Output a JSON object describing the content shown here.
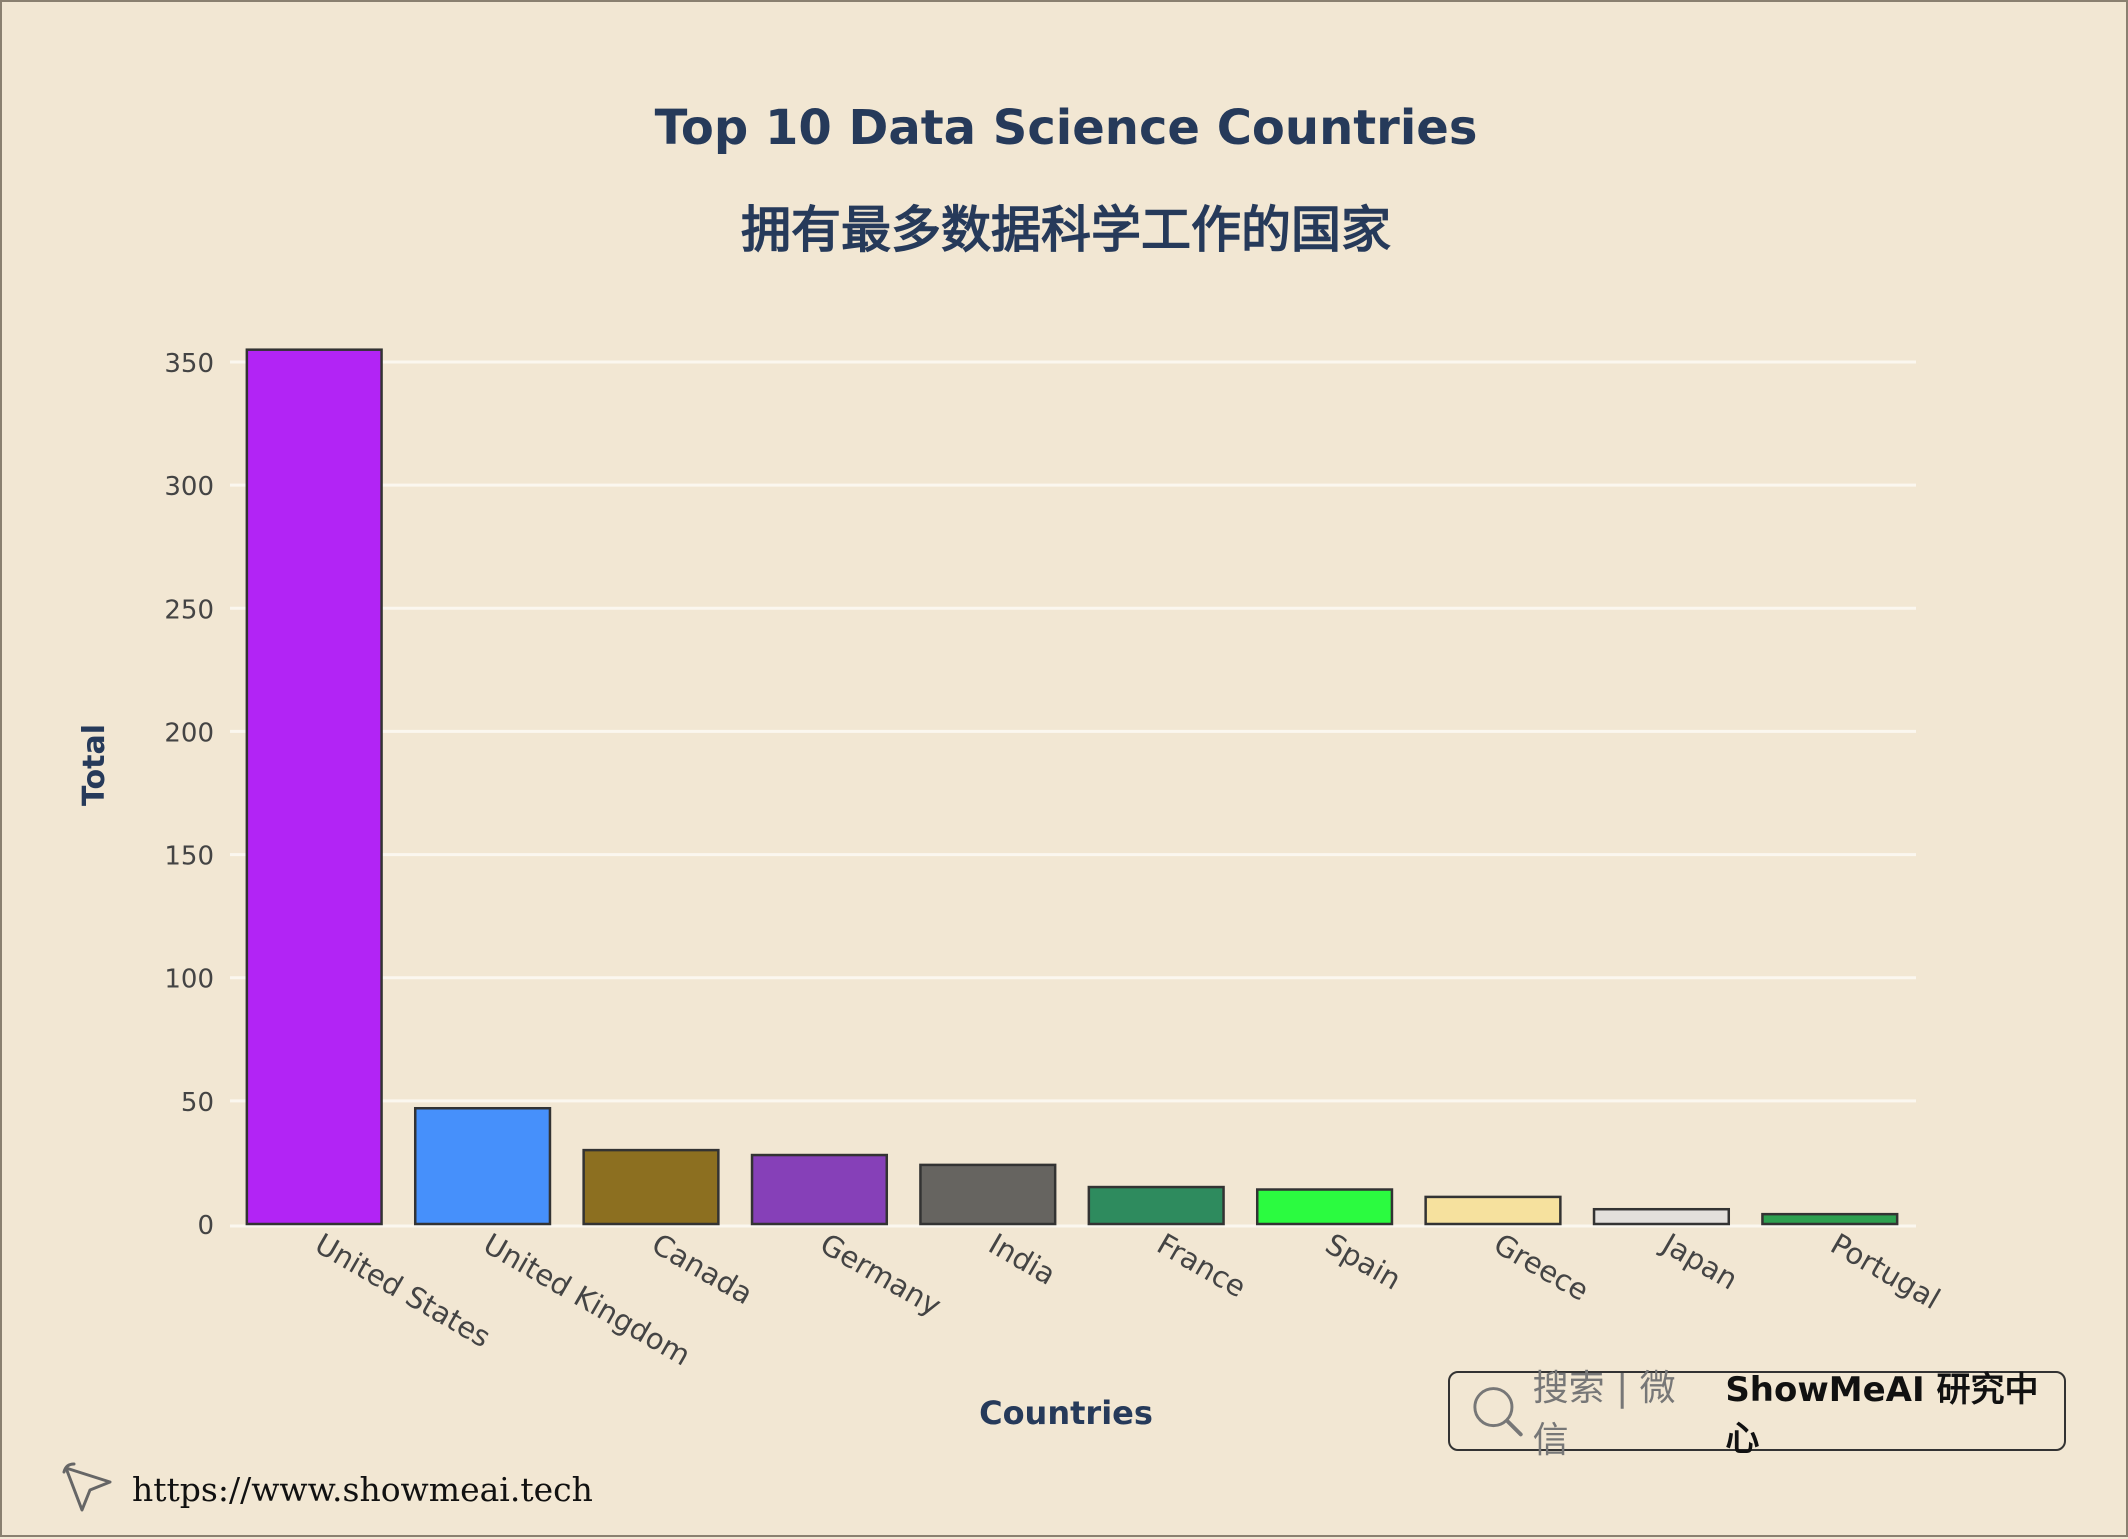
{
  "chart_data": {
    "type": "bar",
    "title": "Top 10 Data Science Countries",
    "subtitle": "拥有最多数据科学工作的国家",
    "xlabel": "Countries",
    "ylabel": "Total",
    "categories": [
      "United States",
      "United Kingdom",
      "Canada",
      "Germany",
      "India",
      "France",
      "Spain",
      "Greece",
      "Japan",
      "Portugal"
    ],
    "values": [
      355,
      47,
      30,
      28,
      24,
      15,
      14,
      11,
      6,
      4
    ],
    "colors": [
      "#b224f5",
      "#4690fb",
      "#8c6f20",
      "#8640b8",
      "#666460",
      "#2e8b5e",
      "#2bfb40",
      "#f6e19e",
      "#e3e0dc",
      "#2ea050"
    ],
    "ylim": [
      0,
      360
    ],
    "yticks": [
      0,
      50,
      100,
      150,
      200,
      250,
      300,
      350
    ],
    "grid": true,
    "legend": "none"
  },
  "watermark": {
    "icon": "search-icon",
    "prefix": "搜索 | 微信",
    "brand": "ShowMeAI 研究中心"
  },
  "footer": {
    "icon": "cursor-icon",
    "url": "https://www.showmeai.tech"
  }
}
